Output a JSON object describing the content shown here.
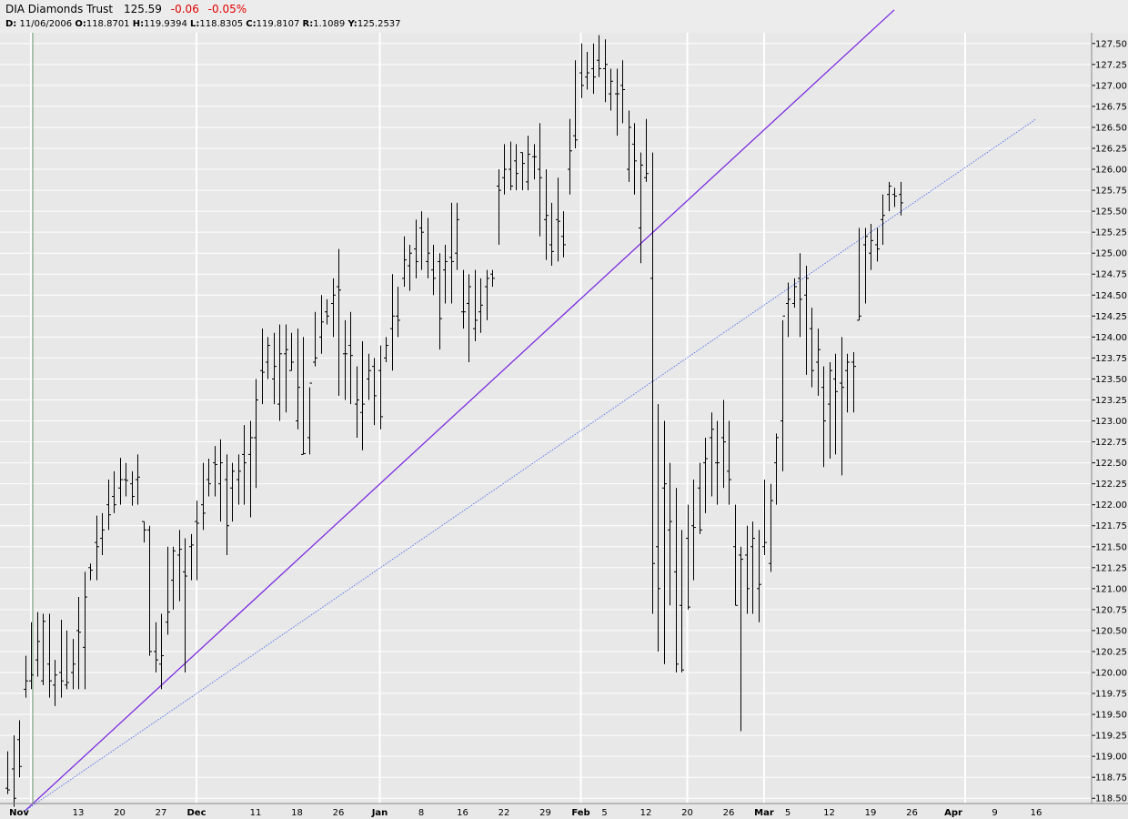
{
  "header": {
    "name": "DIA Diamonds Trust",
    "price": "125.59",
    "change": "-0.06",
    "change_pct": "-0.05%",
    "info": {
      "d_label": "D:",
      "d_value": "11/06/2006",
      "o_label": "O:",
      "o_value": "118.8701",
      "h_label": "H:",
      "h_value": "119.9394",
      "l_label": "L:",
      "l_value": "118.8305",
      "c_label": "C:",
      "c_value": "119.8107",
      "r_label": "R:",
      "r_value": "1.1089",
      "y_label": "Y:",
      "y_value": "125.2537"
    }
  },
  "colors": {
    "background": "#e8e8e8",
    "grid": "#ffffff",
    "bars": "#000000",
    "trendline_solid": "#7b2be0",
    "trendline_dotted": "#4a6fe8",
    "negative_change": "#e00000"
  },
  "chart_data": {
    "type": "ohlc",
    "ylim": [
      118.3,
      127.75
    ],
    "grid": true,
    "y_ticks": [
      118.5,
      118.75,
      119.0,
      119.25,
      119.5,
      119.75,
      120.0,
      120.25,
      120.5,
      120.75,
      121.0,
      121.25,
      121.5,
      121.75,
      122.0,
      122.25,
      122.5,
      122.75,
      123.0,
      123.25,
      123.5,
      123.75,
      124.0,
      124.25,
      124.5,
      124.75,
      125.0,
      125.25,
      125.5,
      125.75,
      126.0,
      126.25,
      126.5,
      126.75,
      127.0,
      127.25,
      127.5
    ],
    "x_labels": [
      {
        "label": "Nov",
        "index": 2,
        "month": true
      },
      {
        "label": "13",
        "index": 12
      },
      {
        "label": "20",
        "index": 19
      },
      {
        "label": "27",
        "index": 26
      },
      {
        "label": "Dec",
        "index": 32,
        "month": true
      },
      {
        "label": "11",
        "index": 42
      },
      {
        "label": "18",
        "index": 49
      },
      {
        "label": "26",
        "index": 56
      },
      {
        "label": "Jan",
        "index": 63,
        "month": true
      },
      {
        "label": "8",
        "index": 70
      },
      {
        "label": "16",
        "index": 77
      },
      {
        "label": "22",
        "index": 84
      },
      {
        "label": "29",
        "index": 91
      },
      {
        "label": "Feb",
        "index": 97,
        "month": true
      },
      {
        "label": "5",
        "index": 101
      },
      {
        "label": "12",
        "index": 108
      },
      {
        "label": "20",
        "index": 115
      },
      {
        "label": "26",
        "index": 122
      },
      {
        "label": "Mar",
        "index": 128,
        "month": true
      },
      {
        "label": "5",
        "index": 132
      },
      {
        "label": "12",
        "index": 139
      },
      {
        "label": "19",
        "index": 146
      },
      {
        "label": "26",
        "index": 153
      },
      {
        "label": "Apr",
        "index": 160,
        "month": true
      },
      {
        "label": "9",
        "index": 167
      },
      {
        "label": "16",
        "index": 174
      }
    ],
    "grid_x_indices": [
      4,
      32,
      63,
      97,
      115,
      128,
      162
    ],
    "marker_index": 4,
    "bars": [
      [
        118.62,
        119.06,
        118.55,
        118.6
      ],
      [
        118.85,
        119.25,
        118.4,
        118.5
      ],
      [
        119.2,
        119.43,
        118.75,
        118.88
      ],
      [
        119.8,
        120.2,
        119.7,
        119.9
      ],
      [
        119.9,
        120.6,
        119.8,
        119.97
      ],
      [
        120.15,
        120.72,
        119.95,
        120.37
      ],
      [
        119.9,
        120.7,
        119.85,
        120.61
      ],
      [
        120.1,
        120.7,
        119.7,
        119.9
      ],
      [
        119.85,
        120.15,
        119.6,
        119.97
      ],
      [
        120.0,
        120.63,
        119.7,
        119.9
      ],
      [
        119.85,
        120.5,
        119.8,
        119.88
      ],
      [
        120.0,
        120.4,
        119.8,
        120.1
      ],
      [
        120.5,
        120.9,
        119.8,
        120.48
      ],
      [
        120.3,
        121.2,
        119.8,
        120.9
      ],
      [
        121.25,
        121.3,
        121.1,
        121.22
      ],
      [
        121.55,
        121.87,
        121.1,
        121.5
      ],
      [
        121.6,
        121.9,
        121.4,
        121.7
      ],
      [
        122.0,
        122.3,
        121.7,
        121.88
      ],
      [
        122.1,
        122.4,
        121.9,
        122.0
      ],
      [
        122.2,
        122.56,
        122.0,
        122.3
      ],
      [
        122.3,
        122.5,
        122.1,
        122.29
      ],
      [
        122.25,
        122.4,
        121.99,
        122.1
      ],
      [
        122.3,
        122.6,
        122.0,
        122.33
      ],
      [
        121.8,
        121.8,
        121.55,
        121.7
      ],
      [
        121.7,
        121.75,
        120.2,
        120.25
      ],
      [
        120.25,
        120.6,
        120.0,
        120.15
      ],
      [
        120.1,
        120.7,
        119.8,
        120.2
      ],
      [
        120.6,
        121.5,
        120.45,
        120.72
      ],
      [
        121.1,
        121.5,
        120.75,
        121.45
      ],
      [
        121.4,
        121.7,
        120.85,
        121.47
      ],
      [
        121.2,
        121.6,
        120.0,
        121.15
      ],
      [
        121.5,
        121.65,
        121.1,
        121.52
      ],
      [
        121.8,
        122.05,
        121.1,
        121.78
      ],
      [
        122.0,
        122.5,
        121.7,
        121.9
      ],
      [
        122.3,
        122.55,
        122.1,
        122.25
      ],
      [
        122.5,
        122.7,
        122.1,
        122.48
      ],
      [
        122.25,
        122.78,
        121.8,
        122.5
      ],
      [
        122.3,
        122.6,
        121.4,
        121.75
      ],
      [
        122.2,
        122.5,
        121.8,
        122.4
      ],
      [
        122.3,
        122.6,
        122.0,
        122.4
      ],
      [
        122.6,
        122.95,
        122.0,
        122.5
      ],
      [
        122.6,
        123.0,
        121.85,
        122.8
      ],
      [
        122.8,
        123.5,
        122.2,
        123.25
      ],
      [
        123.6,
        124.1,
        123.2,
        123.58
      ],
      [
        123.7,
        124.0,
        123.5,
        123.9
      ],
      [
        123.5,
        124.05,
        123.2,
        123.65
      ],
      [
        123.2,
        124.15,
        123.0,
        123.8
      ],
      [
        123.8,
        124.15,
        123.1,
        123.85
      ],
      [
        123.6,
        124.05,
        123.6,
        123.7
      ],
      [
        123.0,
        124.1,
        122.9,
        123.4
      ],
      [
        122.6,
        124.0,
        122.6,
        122.61
      ],
      [
        122.8,
        123.4,
        122.6,
        123.45
      ],
      [
        123.7,
        124.3,
        123.65,
        123.75
      ],
      [
        124.0,
        124.5,
        123.8,
        124.18
      ],
      [
        124.3,
        124.45,
        124.15,
        124.25
      ],
      [
        124.4,
        124.7,
        124.0,
        124.5
      ],
      [
        124.6,
        125.05,
        123.3,
        124.56
      ],
      [
        123.8,
        124.2,
        123.25,
        123.8
      ],
      [
        123.9,
        124.3,
        123.2,
        123.78
      ],
      [
        123.2,
        123.65,
        122.8,
        123.25
      ],
      [
        123.1,
        123.95,
        122.65,
        123.2
      ],
      [
        123.5,
        123.8,
        123.25,
        123.6
      ],
      [
        123.65,
        123.75,
        122.95,
        123.3
      ],
      [
        123.6,
        123.9,
        122.9,
        123.05
      ],
      [
        123.75,
        124.0,
        123.7,
        123.9
      ],
      [
        124.1,
        124.75,
        123.6,
        124.25
      ],
      [
        124.25,
        124.6,
        124.0,
        124.2
      ],
      [
        124.7,
        125.2,
        124.6,
        124.92
      ],
      [
        124.85,
        125.1,
        124.55,
        125.0
      ],
      [
        125.05,
        125.4,
        124.7,
        124.9
      ],
      [
        125.3,
        125.5,
        124.8,
        125.25
      ],
      [
        124.9,
        125.42,
        124.7,
        125.0
      ],
      [
        124.8,
        125.1,
        124.5,
        124.7
      ],
      [
        124.9,
        125.0,
        123.85,
        124.22
      ],
      [
        124.8,
        125.1,
        124.4,
        124.9
      ],
      [
        124.95,
        125.6,
        124.4,
        124.9
      ],
      [
        125.0,
        125.6,
        124.8,
        125.4
      ],
      [
        124.3,
        124.8,
        124.1,
        124.3
      ],
      [
        124.4,
        124.75,
        123.7,
        124.6
      ],
      [
        124.1,
        124.8,
        123.95,
        124.2
      ],
      [
        124.3,
        124.7,
        124.05,
        124.38
      ],
      [
        124.6,
        124.8,
        124.2,
        124.7
      ],
      [
        124.75,
        124.8,
        124.6,
        124.7
      ],
      [
        125.8,
        126.0,
        125.1,
        125.75
      ],
      [
        125.9,
        126.3,
        125.7,
        126.0
      ],
      [
        126.0,
        126.33,
        125.75,
        125.8
      ],
      [
        126.1,
        126.3,
        125.75,
        125.95
      ],
      [
        126.2,
        126.2,
        125.75,
        126.07
      ],
      [
        125.85,
        126.4,
        125.75,
        126.18
      ],
      [
        126.15,
        126.3,
        125.88,
        126.15
      ],
      [
        126.0,
        126.55,
        125.2,
        125.9
      ],
      [
        125.4,
        126.0,
        124.92,
        125.45
      ],
      [
        125.1,
        125.6,
        124.85,
        125.02
      ],
      [
        125.4,
        125.9,
        124.9,
        125.38
      ],
      [
        125.2,
        125.5,
        124.95,
        125.1
      ],
      [
        126.0,
        126.6,
        125.7,
        126.22
      ],
      [
        126.4,
        127.3,
        126.25,
        126.35
      ],
      [
        127.15,
        127.5,
        126.85,
        127.0
      ],
      [
        127.1,
        127.4,
        126.95,
        127.15
      ],
      [
        127.2,
        127.5,
        126.9,
        127.1
      ],
      [
        127.3,
        127.6,
        127.1,
        127.2
      ],
      [
        127.2,
        127.55,
        126.8,
        127.25
      ],
      [
        126.9,
        127.2,
        126.7,
        127.05
      ],
      [
        126.9,
        127.2,
        126.4,
        126.9
      ],
      [
        127.0,
        127.3,
        126.55,
        126.95
      ],
      [
        126.0,
        126.7,
        125.85,
        126.5
      ],
      [
        126.3,
        126.55,
        125.7,
        126.1
      ],
      [
        125.3,
        126.2,
        124.88,
        126.05
      ],
      [
        125.9,
        126.6,
        125.85,
        125.95
      ],
      [
        124.7,
        126.2,
        120.7,
        121.3
      ],
      [
        121.5,
        123.2,
        120.25,
        121.0
      ],
      [
        122.2,
        123.0,
        120.1,
        122.25
      ],
      [
        121.7,
        122.5,
        120.8,
        121.8
      ],
      [
        121.2,
        122.2,
        120.0,
        120.1
      ],
      [
        120.8,
        121.7,
        120.0,
        120.03
      ],
      [
        121.6,
        122.0,
        120.75,
        120.78
      ],
      [
        121.75,
        122.3,
        121.1,
        121.73
      ],
      [
        122.2,
        122.5,
        121.65,
        121.7
      ],
      [
        122.5,
        122.8,
        121.9,
        122.55
      ],
      [
        122.8,
        123.1,
        122.1,
        122.9
      ],
      [
        122.5,
        123.0,
        122.0,
        122.5
      ],
      [
        122.8,
        123.25,
        122.2,
        122.75
      ],
      [
        122.4,
        123.0,
        122.0,
        122.3
      ],
      [
        121.5,
        122.0,
        120.8,
        120.8
      ],
      [
        121.4,
        121.5,
        119.3,
        121.35
      ],
      [
        121.4,
        121.75,
        120.7,
        121.0
      ],
      [
        121.5,
        121.8,
        120.7,
        121.6
      ],
      [
        121.0,
        121.7,
        120.6,
        121.05
      ],
      [
        121.5,
        122.3,
        121.4,
        121.55
      ],
      [
        121.3,
        122.25,
        121.2,
        122.05
      ],
      [
        122.5,
        122.85,
        122.0,
        122.8
      ],
      [
        123.0,
        124.2,
        122.4,
        124.25
      ],
      [
        124.4,
        124.65,
        124.0,
        124.45
      ],
      [
        124.4,
        124.7,
        124.35,
        124.6
      ],
      [
        124.7,
        125.0,
        124.0,
        124.45
      ],
      [
        124.5,
        124.85,
        123.55,
        124.7
      ],
      [
        124.1,
        124.35,
        123.4,
        123.6
      ],
      [
        123.7,
        124.1,
        123.3,
        123.85
      ],
      [
        123.4,
        123.65,
        122.45,
        123.0
      ],
      [
        123.2,
        123.7,
        122.55,
        123.6
      ],
      [
        123.5,
        123.8,
        122.6,
        123.35
      ],
      [
        123.45,
        124.0,
        122.35,
        123.4
      ],
      [
        123.6,
        123.8,
        123.1,
        123.7
      ],
      [
        123.7,
        123.82,
        123.1,
        123.65
      ],
      [
        124.2,
        125.3,
        124.2,
        124.25
      ],
      [
        125.1,
        125.3,
        124.4,
        125.2
      ],
      [
        125.0,
        125.35,
        124.8,
        125.15
      ],
      [
        125.1,
        125.3,
        124.9,
        125.05
      ],
      [
        125.4,
        125.7,
        125.1,
        125.45
      ],
      [
        125.7,
        125.85,
        125.5,
        125.8
      ],
      [
        125.7,
        125.78,
        125.55,
        125.68
      ],
      [
        125.7,
        125.85,
        125.45,
        125.6
      ]
    ],
    "trendlines": [
      {
        "style": "solid",
        "points": [
          [
            3,
            118.35
          ],
          [
            150,
            127.9
          ]
        ]
      },
      {
        "style": "dotted",
        "points": [
          [
            3,
            118.35
          ],
          [
            174,
            126.6
          ]
        ]
      }
    ]
  }
}
